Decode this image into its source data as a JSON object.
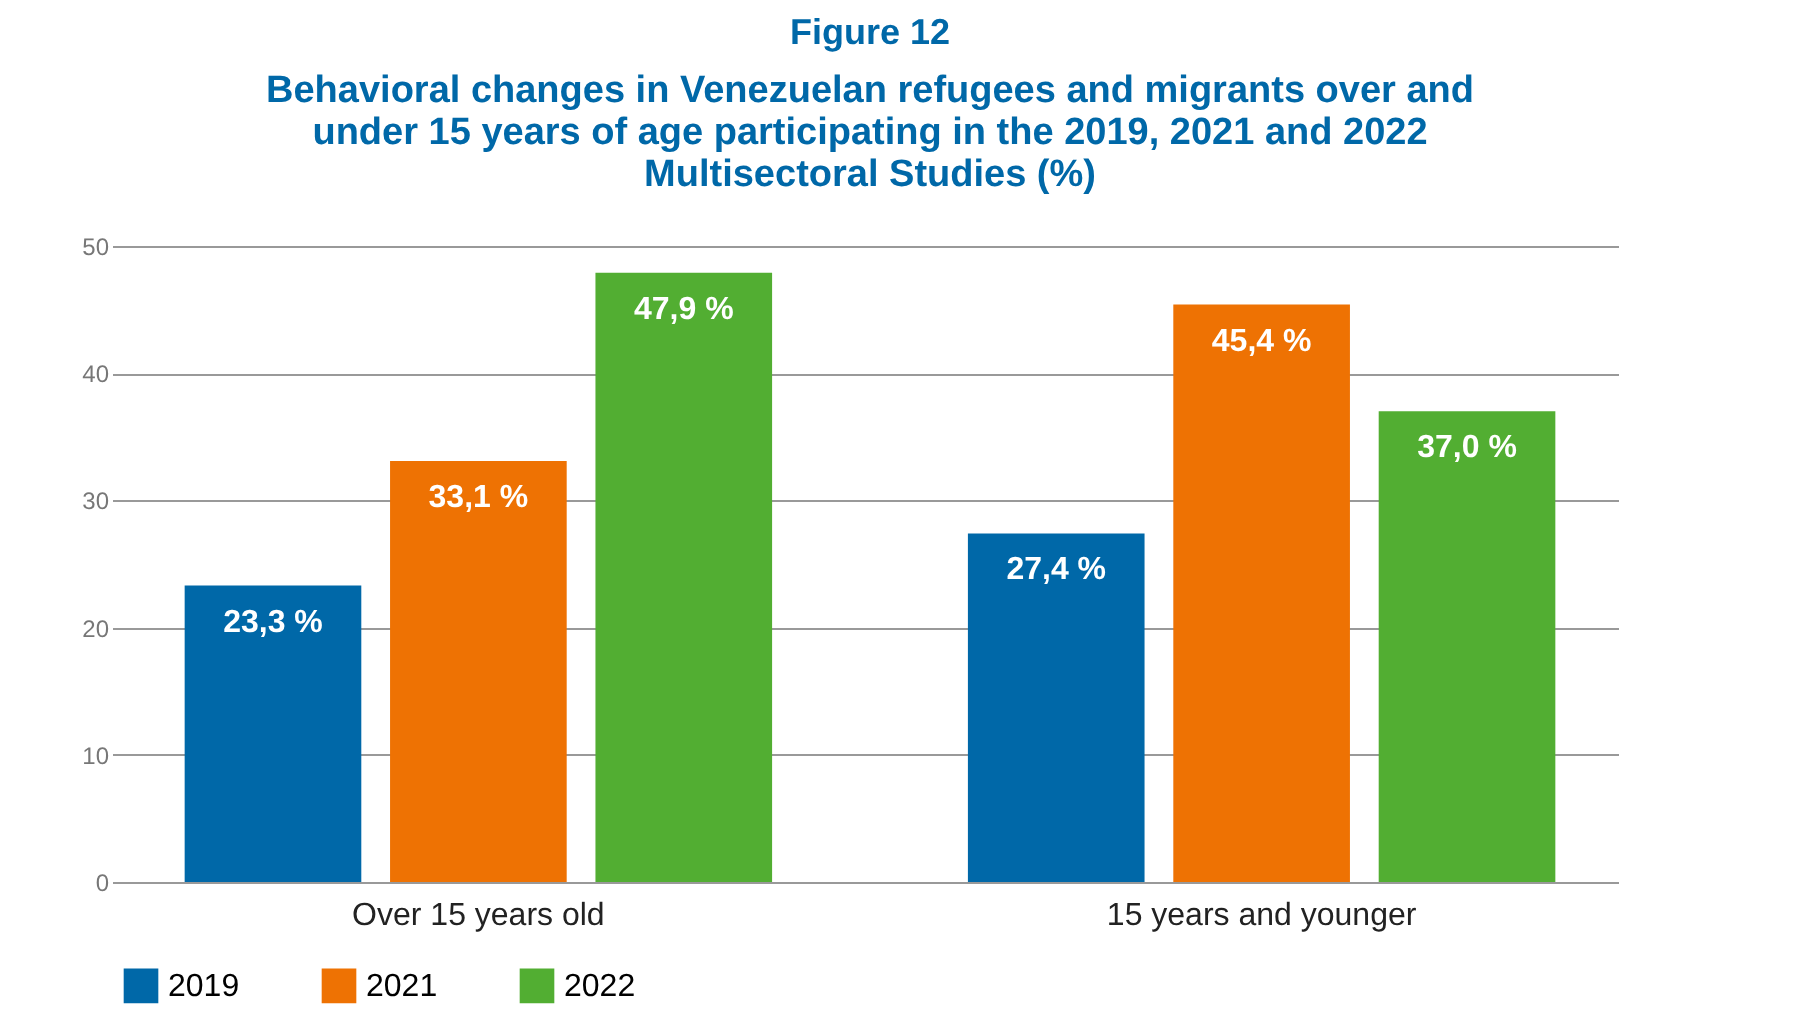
{
  "chart_data": {
    "type": "bar",
    "title": "Figure 12",
    "subtitle": "Behavioral changes in Venezuelan refugees and migrants over and under 15 years of age participating in the 2019, 2021 and 2022 Multisectoral Studies (%)",
    "categories": [
      "Over 15 years old",
      "15 years and younger"
    ],
    "series": [
      {
        "name": "2019",
        "color": "#0068a8",
        "values": [
          23.3,
          27.4
        ],
        "value_labels": [
          "23,3 %",
          "27,4 %"
        ]
      },
      {
        "name": "2021",
        "color": "#ee7203",
        "values": [
          33.1,
          45.4
        ],
        "value_labels": [
          "33,1 %",
          "45,4 %"
        ]
      },
      {
        "name": "2022",
        "color": "#52ae32",
        "values": [
          47.9,
          37.0
        ],
        "value_labels": [
          "47,9 %",
          "37,0 %"
        ]
      }
    ],
    "ylim": [
      0,
      50
    ],
    "yticks": [
      0,
      10,
      20,
      30,
      40,
      50
    ],
    "grid": "y",
    "legend": "bottom"
  }
}
